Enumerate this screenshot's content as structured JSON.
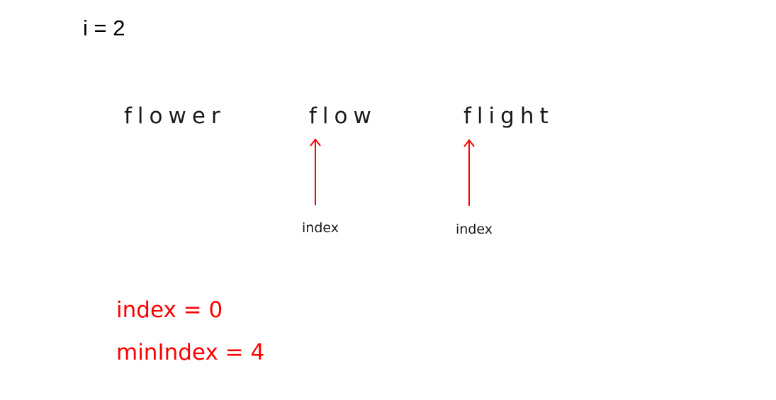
{
  "iteration": {
    "label": "i = 2"
  },
  "words": [
    "flower",
    "flow",
    "flight"
  ],
  "pointers": [
    {
      "label": "index"
    },
    {
      "label": "index"
    }
  ],
  "variables": [
    {
      "text": "index = 0"
    },
    {
      "text": "minIndex = 4"
    }
  ],
  "colors": {
    "text": "#1a1a1a",
    "accent": "#ff0000"
  }
}
